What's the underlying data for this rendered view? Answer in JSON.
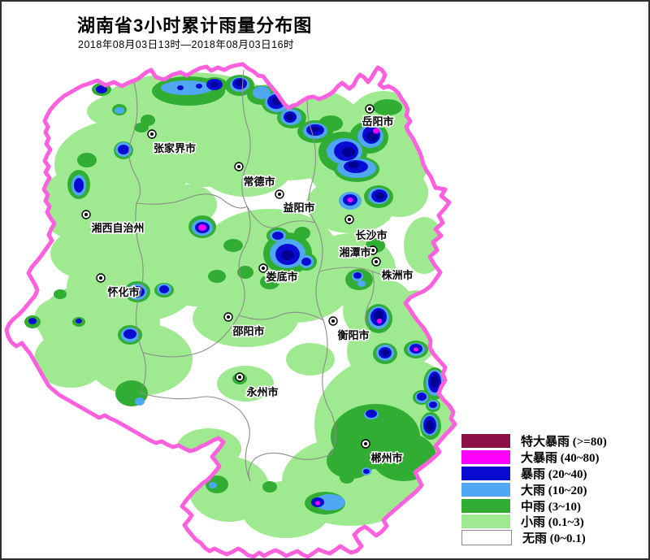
{
  "header": {
    "title": "湖南省3小时累计雨量分布图",
    "subtitle": "2018年08月03日13时—2018年08月03日16时"
  },
  "legend": {
    "items": [
      {
        "name": "特大暴雨",
        "range": "(>=80)",
        "color": "#8B1048"
      },
      {
        "name": "大暴雨",
        "range": "(40~80)",
        "color": "#FF00FF"
      },
      {
        "name": "暴雨",
        "range": "(20~40)",
        "color": "#0A0BD2"
      },
      {
        "name": "大雨",
        "range": "(10~20)",
        "color": "#50A8F4"
      },
      {
        "name": "中雨",
        "range": "(3~10)",
        "color": "#31AD34"
      },
      {
        "name": "小雨",
        "range": "(0.1~3)",
        "color": "#9FEA90"
      },
      {
        "name": "无雨",
        "range": "(0~0.1)",
        "color": "#FFFFFF"
      }
    ]
  },
  "map": {
    "province_border_color": "#FF61DE",
    "city_border_color": "#8C8C8C",
    "level_colors": {
      "lightgreen": "#9FEA90",
      "green": "#31AD34",
      "lightblue": "#50A8F4",
      "blue": "#0A0BD2",
      "darkblue": "#000092",
      "magenta": "#FF00FF"
    },
    "cities": [
      {
        "name": "岳阳市",
        "marker": [
          453,
          132
        ],
        "label": [
          463,
          152
        ]
      },
      {
        "name": "张家界市",
        "marker": [
          185,
          163
        ],
        "label": [
          213,
          185
        ]
      },
      {
        "name": "常德市",
        "marker": [
          292,
          203
        ],
        "label": [
          317,
          226
        ]
      },
      {
        "name": "益阳市",
        "marker": [
          342,
          237
        ],
        "label": [
          366,
          258
        ]
      },
      {
        "name": "长沙市",
        "marker": [
          428,
          268
        ],
        "label": [
          455,
          292
        ]
      },
      {
        "name": "湘潭市",
        "marker": [
          457,
          306
        ],
        "label": [
          435,
          313
        ]
      },
      {
        "name": "株洲市",
        "marker": [
          461,
          320
        ],
        "label": [
          487,
          341
        ]
      },
      {
        "name": "湘西自治州",
        "marker": [
          104,
          262
        ],
        "label": [
          143,
          283
        ]
      },
      {
        "name": "娄底市",
        "marker": [
          322,
          328
        ],
        "label": [
          345,
          343
        ]
      },
      {
        "name": "怀化市",
        "marker": [
          122,
          340
        ],
        "label": [
          150,
          362
        ]
      },
      {
        "name": "邵阳市",
        "marker": [
          279,
          388
        ],
        "label": [
          304,
          410
        ]
      },
      {
        "name": "衡阳市",
        "marker": [
          408,
          393
        ],
        "label": [
          433,
          415
        ]
      },
      {
        "name": "永州市",
        "marker": [
          293,
          462
        ],
        "label": [
          321,
          485
        ]
      },
      {
        "name": "郴州市",
        "marker": [
          448,
          544
        ],
        "label": [
          474,
          566
        ]
      }
    ],
    "cells": [
      [
        "lightgreen",
        230,
        135,
        115,
        48
      ],
      [
        "lightgreen",
        350,
        160,
        100,
        60
      ],
      [
        "lightgreen",
        450,
        195,
        75,
        60
      ],
      [
        "lightgreen",
        470,
        150,
        45,
        40
      ],
      [
        "lightgreen",
        300,
        200,
        60,
        40
      ],
      [
        "lightgreen",
        150,
        200,
        85,
        55
      ],
      [
        "lightgreen",
        100,
        250,
        55,
        45
      ],
      [
        "lightgreen",
        190,
        265,
        55,
        40
      ],
      [
        "lightgreen",
        120,
        310,
        60,
        35
      ],
      [
        "lightgreen",
        160,
        350,
        80,
        45
      ],
      [
        "lightgreen",
        120,
        395,
        75,
        50
      ],
      [
        "lightgreen",
        170,
        440,
        65,
        45
      ],
      [
        "lightgreen",
        85,
        440,
        45,
        35
      ],
      [
        "lightgreen",
        240,
        330,
        60,
        45
      ],
      [
        "lightgreen",
        330,
        310,
        85,
        55
      ],
      [
        "lightgreen",
        360,
        350,
        70,
        45
      ],
      [
        "lightgreen",
        300,
        390,
        65,
        35
      ],
      [
        "lightgreen",
        430,
        330,
        55,
        45
      ],
      [
        "lightgreen",
        465,
        380,
        45,
        40
      ],
      [
        "lightgreen",
        470,
        430,
        45,
        40
      ],
      [
        "lightgreen",
        480,
        520,
        95,
        85
      ],
      [
        "lightgreen",
        430,
        590,
        85,
        55
      ],
      [
        "lightgreen",
        350,
        625,
        55,
        35
      ],
      [
        "lightgreen",
        280,
        600,
        50,
        40
      ],
      [
        "lightgreen",
        255,
        550,
        40,
        25
      ],
      [
        "lightgreen",
        300,
        470,
        35,
        22
      ],
      [
        "lightgreen",
        205,
        300,
        40,
        25
      ],
      [
        "lightgreen",
        250,
        200,
        40,
        28
      ],
      [
        "lightgreen",
        430,
        250,
        55,
        35
      ],
      [
        "lightgreen",
        490,
        235,
        35,
        30
      ],
      [
        "lightgreen",
        520,
        300,
        25,
        35
      ],
      [
        "lightgreen",
        300,
        140,
        60,
        35
      ],
      [
        "lightgreen",
        145,
        135,
        40,
        20
      ],
      [
        "lightgreen",
        510,
        400,
        30,
        45
      ],
      [
        "lightgreen",
        380,
        440,
        30,
        20
      ],
      [
        "lightgreen",
        230,
        250,
        35,
        25
      ],
      [
        "lightgreen",
        70,
        390,
        30,
        25
      ],
      [
        "green",
        230,
        110,
        45,
        18
      ],
      [
        "green",
        262,
        103,
        16,
        10
      ],
      [
        "green",
        293,
        103,
        18,
        13
      ],
      [
        "green",
        320,
        115,
        18,
        12
      ],
      [
        "green",
        340,
        125,
        20,
        14
      ],
      [
        "green",
        357,
        143,
        18,
        13
      ],
      [
        "green",
        386,
        160,
        22,
        14
      ],
      [
        "green",
        420,
        185,
        30,
        25
      ],
      [
        "green",
        452,
        167,
        24,
        20
      ],
      [
        "green",
        437,
        206,
        28,
        16
      ],
      [
        "green",
        464,
        240,
        18,
        14
      ],
      [
        "green",
        475,
        130,
        18,
        10
      ],
      [
        "green",
        405,
        150,
        15,
        10
      ],
      [
        "green",
        180,
        146,
        9,
        7
      ],
      [
        "green",
        145,
        133,
        9,
        7
      ],
      [
        "green",
        123,
        108,
        12,
        8
      ],
      [
        "green",
        95,
        225,
        14,
        18
      ],
      [
        "green",
        150,
        183,
        12,
        11
      ],
      [
        "green",
        105,
        195,
        12,
        9
      ],
      [
        "green",
        247,
        277,
        17,
        14
      ],
      [
        "green",
        352,
        310,
        30,
        26
      ],
      [
        "green",
        340,
        288,
        14,
        10
      ],
      [
        "green",
        375,
        320,
        13,
        11
      ],
      [
        "green",
        300,
        333,
        10,
        8
      ],
      [
        "green",
        330,
        345,
        12,
        9
      ],
      [
        "green",
        429,
        245,
        13,
        10
      ],
      [
        "green",
        464,
        390,
        17,
        18
      ],
      [
        "green",
        472,
        433,
        15,
        13
      ],
      [
        "green",
        510,
        428,
        15,
        11
      ],
      [
        "green",
        533,
        470,
        14,
        20
      ],
      [
        "green",
        517,
        487,
        11,
        9
      ],
      [
        "green",
        531,
        497,
        9,
        8
      ],
      [
        "green",
        528,
        522,
        13,
        17
      ],
      [
        "green",
        455,
        508,
        13,
        9
      ],
      [
        "green",
        460,
        535,
        55,
        40
      ],
      [
        "green",
        495,
        560,
        40,
        30
      ],
      [
        "green",
        430,
        565,
        30,
        22
      ],
      [
        "green",
        398,
        617,
        25,
        14
      ],
      [
        "green",
        265,
        594,
        14,
        11
      ],
      [
        "green",
        330,
        597,
        9,
        7
      ],
      [
        "green",
        425,
        586,
        9,
        7
      ],
      [
        "green",
        167,
        357,
        16,
        13
      ],
      [
        "green",
        200,
        355,
        12,
        9
      ],
      [
        "green",
        158,
        410,
        15,
        12
      ],
      [
        "green",
        95,
        394,
        8,
        6
      ],
      [
        "green",
        38,
        394,
        10,
        8
      ],
      [
        "green",
        72,
        360,
        8,
        6
      ],
      [
        "green",
        440,
        342,
        17,
        13
      ],
      [
        "green",
        160,
        482,
        20,
        16
      ],
      [
        "green",
        285,
        300,
        12,
        8
      ],
      [
        "green",
        265,
        338,
        11,
        8
      ],
      [
        "green",
        293,
        464,
        9,
        7
      ],
      [
        "green",
        172,
        155,
        9,
        6
      ],
      [
        "green",
        460,
        300,
        12,
        9
      ],
      [
        "green",
        370,
        285,
        10,
        8
      ],
      [
        "lightblue",
        228,
        106,
        32,
        9
      ],
      [
        "lightblue",
        293,
        102,
        12,
        9
      ],
      [
        "lightblue",
        320,
        112,
        11,
        8
      ],
      [
        "lightblue",
        339,
        124,
        15,
        12
      ],
      [
        "lightblue",
        356,
        142,
        13,
        10
      ],
      [
        "lightblue",
        386,
        159,
        15,
        10
      ],
      [
        "lightblue",
        422,
        184,
        22,
        16
      ],
      [
        "lightblue",
        454,
        166,
        16,
        14
      ],
      [
        "lightblue",
        437,
        205,
        24,
        12
      ],
      [
        "lightblue",
        464,
        239,
        13,
        10
      ],
      [
        "lightblue",
        145,
        134,
        6,
        4
      ],
      [
        "lightblue",
        95,
        226,
        9,
        13
      ],
      [
        "lightblue",
        150,
        182,
        10,
        9
      ],
      [
        "lightblue",
        247,
        278,
        13,
        10
      ],
      [
        "lightblue",
        352,
        310,
        22,
        18
      ],
      [
        "lightblue",
        340,
        288,
        10,
        7
      ],
      [
        "lightblue",
        375,
        320,
        9,
        8
      ],
      [
        "lightblue",
        429,
        245,
        14,
        11
      ],
      [
        "lightblue",
        464,
        389,
        13,
        14
      ],
      [
        "lightblue",
        472,
        432,
        11,
        10
      ],
      [
        "lightblue",
        510,
        428,
        11,
        8
      ],
      [
        "lightblue",
        533,
        469,
        11,
        16
      ],
      [
        "lightblue",
        517,
        487,
        8,
        7
      ],
      [
        "lightblue",
        531,
        496,
        7,
        6
      ],
      [
        "lightblue",
        527,
        521,
        10,
        13
      ],
      [
        "lightblue",
        455,
        508,
        9,
        6
      ],
      [
        "lightblue",
        404,
        616,
        19,
        10
      ],
      [
        "lightblue",
        167,
        357,
        12,
        10
      ],
      [
        "lightblue",
        200,
        354,
        9,
        7
      ],
      [
        "lightblue",
        158,
        410,
        11,
        9
      ],
      [
        "lightblue",
        438,
        338,
        7,
        6
      ],
      [
        "lightblue",
        443,
        347,
        5,
        4
      ],
      [
        "lightblue",
        170,
        492,
        6,
        5
      ],
      [
        "lightblue",
        449,
        578,
        6,
        5
      ],
      [
        "lightblue",
        260,
        595,
        5,
        4
      ],
      [
        "blue",
        262,
        102,
        10,
        7
      ],
      [
        "blue",
        293,
        101,
        9,
        7
      ],
      [
        "blue",
        338,
        123,
        11,
        9
      ],
      [
        "blue",
        355,
        142,
        8,
        7
      ],
      [
        "blue",
        386,
        158,
        11,
        7
      ],
      [
        "blue",
        424,
        184,
        15,
        12
      ],
      [
        "blue",
        455,
        164,
        11,
        11
      ],
      [
        "blue",
        436,
        203,
        15,
        8
      ],
      [
        "blue",
        465,
        239,
        10,
        8
      ],
      [
        "blue",
        220,
        106,
        4,
        3
      ],
      [
        "blue",
        243,
        104,
        4,
        3
      ],
      [
        "blue",
        123,
        108,
        7,
        5
      ],
      [
        "blue",
        95,
        226,
        6,
        9
      ],
      [
        "blue",
        150,
        182,
        7,
        6
      ],
      [
        "blue",
        247,
        278,
        9,
        7
      ],
      [
        "blue",
        352,
        311,
        15,
        13
      ],
      [
        "blue",
        340,
        288,
        7,
        5
      ],
      [
        "blue",
        375,
        320,
        6,
        5
      ],
      [
        "blue",
        429,
        244,
        9,
        7
      ],
      [
        "blue",
        464,
        388,
        10,
        11
      ],
      [
        "blue",
        472,
        432,
        8,
        7
      ],
      [
        "blue",
        510,
        427,
        8,
        6
      ],
      [
        "blue",
        533,
        468,
        8,
        13
      ],
      [
        "blue",
        517,
        486,
        6,
        5
      ],
      [
        "blue",
        531,
        496,
        5,
        4
      ],
      [
        "blue",
        527,
        521,
        8,
        11
      ],
      [
        "blue",
        455,
        507,
        7,
        5
      ],
      [
        "blue",
        389,
        616,
        8,
        6
      ],
      [
        "blue",
        167,
        357,
        9,
        7
      ],
      [
        "blue",
        200,
        354,
        6,
        5
      ],
      [
        "blue",
        158,
        409,
        8,
        6
      ],
      [
        "blue",
        95,
        393,
        4,
        3
      ],
      [
        "blue",
        38,
        393,
        5,
        4
      ],
      [
        "blue",
        438,
        337,
        5,
        4
      ],
      [
        "blue",
        449,
        578,
        4,
        3
      ],
      [
        "darkblue",
        293,
        100,
        5,
        4
      ],
      [
        "darkblue",
        340,
        122,
        7,
        5
      ],
      [
        "darkblue",
        355,
        142,
        5,
        4
      ],
      [
        "darkblue",
        386,
        157,
        6,
        3
      ],
      [
        "darkblue",
        427,
        185,
        8,
        6
      ],
      [
        "darkblue",
        456,
        166,
        7,
        6
      ],
      [
        "darkblue",
        433,
        201,
        7,
        4
      ],
      [
        "darkblue",
        466,
        239,
        6,
        4
      ],
      [
        "darkblue",
        352,
        312,
        8,
        6
      ],
      [
        "darkblue",
        167,
        356,
        5,
        4
      ],
      [
        "darkblue",
        464,
        387,
        6,
        7
      ],
      [
        "darkblue",
        533,
        467,
        5,
        8
      ],
      [
        "darkblue",
        527,
        522,
        5,
        7
      ],
      [
        "darkblue",
        472,
        432,
        5,
        4
      ],
      [
        "darkblue",
        262,
        102,
        5,
        3
      ],
      [
        "magenta",
        461,
        159,
        4,
        3.5
      ],
      [
        "magenta",
        247,
        278,
        5,
        4
      ],
      [
        "magenta",
        429,
        244,
        3.5,
        3
      ],
      [
        "magenta",
        465,
        393,
        3,
        3
      ],
      [
        "magenta",
        510,
        428,
        3,
        2.5
      ],
      [
        "magenta",
        389,
        617,
        3,
        2.5
      ]
    ]
  }
}
